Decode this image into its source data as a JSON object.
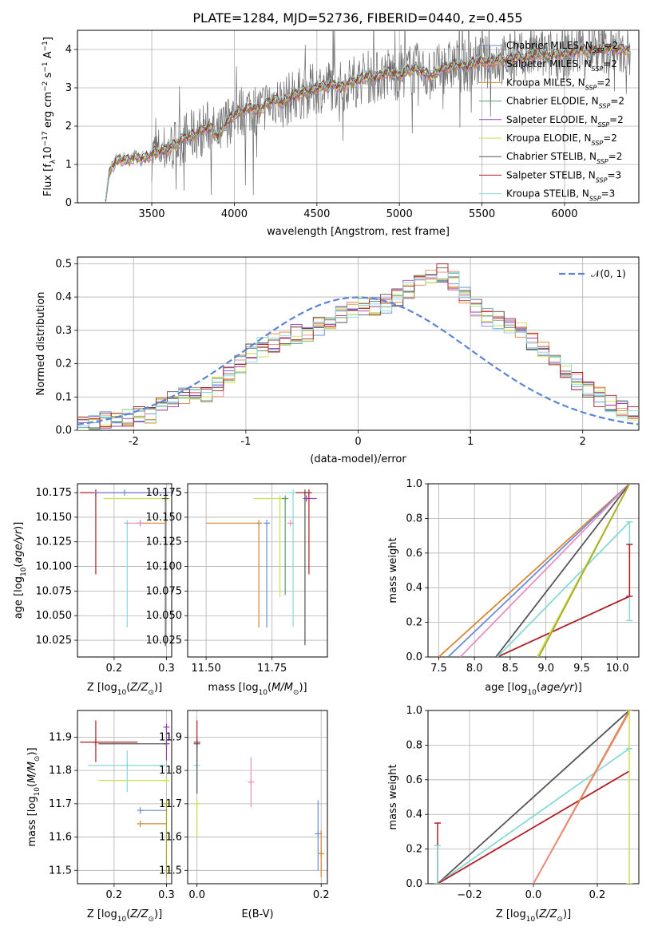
{
  "title": "PLATE=1284, MJD=52736, FIBERID=0440, z=0.455",
  "colors": {
    "Chabrier MILES": "#6a8bd8",
    "Salpeter MILES": "#e88a7a",
    "Kroupa MILES": "#d9862f",
    "Chabrier ELODIE": "#5a9a6a",
    "Salpeter ELODIE": "#9a3fb5",
    "Kroupa ELODIE": "#c7e24f",
    "Chabrier STELIB": "#555555",
    "Salpeter STELIB": "#b01f24",
    "Kroupa STELIB": "#86d9d9",
    "Pink": "#e78fc4",
    "Olive": "#aaaa2a",
    "normal": "#5b84d6"
  },
  "chart_data": [
    {
      "id": "spectrum",
      "type": "line",
      "title": "PLATE=1284, MJD=52736, FIBERID=0440, z=0.455",
      "xlabel": "wavelength [Angstrom, rest frame]",
      "ylabel": "Flux [f_λ 10^-17 erg cm^-2 s^-1 A^-1]",
      "xlim": [
        3050,
        6450
      ],
      "ylim": [
        0,
        4.5
      ],
      "xticks": [
        3500,
        4000,
        4500,
        5000,
        5500,
        6000
      ],
      "yticks": [
        0,
        1,
        2,
        3,
        4
      ],
      "legend_position": "top-right",
      "legend": [
        {
          "main": "Chabrier MILES, N",
          "sub": "SSP",
          "tail": "=2"
        },
        {
          "main": "Salpeter MILES, N",
          "sub": "SSP",
          "tail": "=2"
        },
        {
          "main": "Kroupa MILES, N",
          "sub": "SSP",
          "tail": "=2"
        },
        {
          "main": "Chabrier ELODIE, N",
          "sub": "SSP",
          "tail": "=2"
        },
        {
          "main": "Salpeter ELODIE, N",
          "sub": "SSP",
          "tail": "=2"
        },
        {
          "main": "Kroupa ELODIE, N",
          "sub": "SSP",
          "tail": "=2"
        },
        {
          "main": "Chabrier STELIB, N",
          "sub": "SSP",
          "tail": "=2"
        },
        {
          "main": "Salpeter STELIB, N",
          "sub": "SSP",
          "tail": "=3"
        },
        {
          "main": "Kroupa STELIB, N",
          "sub": "SSP",
          "tail": "=3"
        }
      ],
      "model_curve": {
        "wavelength": [
          3220,
          3240,
          3250,
          3300,
          3350,
          3400,
          3450,
          3500,
          3550,
          3600,
          3650,
          3700,
          3750,
          3800,
          3850,
          3900,
          3950,
          4000,
          4050,
          4100,
          4150,
          4200,
          4250,
          4300,
          4350,
          4400,
          4450,
          4500,
          4550,
          4600,
          4650,
          4700,
          4750,
          4800,
          4850,
          4900,
          4950,
          5000,
          5050,
          5100,
          5150,
          5200,
          5250,
          5300,
          5350,
          5400,
          5450,
          5500,
          5550,
          5600,
          5650,
          5700,
          5750,
          5800,
          5850,
          5900,
          5950,
          6000,
          6050,
          6100,
          6150,
          6200,
          6250,
          6300,
          6350
        ],
        "flux": [
          0.0,
          0.75,
          0.9,
          1.15,
          1.1,
          1.2,
          1.15,
          1.25,
          1.35,
          1.4,
          1.55,
          1.7,
          1.75,
          1.9,
          2.0,
          1.7,
          2.1,
          2.3,
          2.4,
          2.5,
          2.4,
          2.6,
          2.7,
          2.6,
          2.8,
          2.85,
          2.9,
          3.0,
          3.05,
          3.1,
          3.0,
          3.15,
          3.2,
          3.3,
          3.25,
          3.35,
          3.4,
          3.3,
          3.45,
          3.5,
          3.4,
          3.3,
          3.5,
          3.55,
          3.6,
          3.55,
          3.65,
          3.7,
          3.65,
          3.75,
          3.7,
          3.8,
          3.75,
          3.85,
          3.9,
          3.8,
          3.9,
          3.85,
          3.95,
          4.0,
          3.95,
          4.0,
          4.05,
          4.0,
          4.0
        ]
      }
    },
    {
      "id": "residuals",
      "type": "bar",
      "xlabel": "(data-model)/error",
      "ylabel": "Normed distribution",
      "xlim": [
        -2.5,
        2.5
      ],
      "ylim": [
        0,
        0.52
      ],
      "xticks": [
        -2,
        -1,
        0,
        1,
        2
      ],
      "yticks": [
        0.0,
        0.1,
        0.2,
        0.3,
        0.4,
        0.5
      ],
      "legend": [
        {
          "label": "𝒩(0, 1)"
        }
      ],
      "legend_position": "top-right",
      "bin_edges_start": -2.5,
      "bin_width": 0.1,
      "histogram_envelope": [
        0.02,
        0.025,
        0.03,
        0.03,
        0.04,
        0.05,
        0.05,
        0.07,
        0.09,
        0.1,
        0.1,
        0.11,
        0.13,
        0.16,
        0.2,
        0.23,
        0.25,
        0.26,
        0.28,
        0.29,
        0.28,
        0.31,
        0.33,
        0.35,
        0.36,
        0.37,
        0.37,
        0.38,
        0.4,
        0.42,
        0.44,
        0.46,
        0.47,
        0.45,
        0.41,
        0.37,
        0.34,
        0.33,
        0.32,
        0.3,
        0.27,
        0.24,
        0.21,
        0.18,
        0.15,
        0.12,
        0.1,
        0.08,
        0.06,
        0.05
      ]
    },
    {
      "id": "age-vs-Z",
      "type": "scatter",
      "xlabel": "Z [log10(Z/Z⊙)]",
      "ylabel": "age [log10(age/yr)]",
      "xlim": [
        0.13,
        0.31
      ],
      "ylim": [
        10.008,
        10.184
      ],
      "xticks": [
        0.2,
        0.3
      ],
      "xtick_labels": [
        "0.2",
        "0.3"
      ],
      "yticks": [
        10.025,
        10.05,
        10.075,
        10.1,
        10.125,
        10.15,
        10.175
      ],
      "points": [
        {
          "model": "Salpeter STELIB",
          "x": 0.165,
          "y": 10.175,
          "xerr": [
            0.03,
            0.14
          ],
          "yerr": [
            0.083,
            0.0
          ]
        },
        {
          "model": "Kroupa ELODIE",
          "x": 0.3,
          "y": 10.169,
          "xerr": [
            0.12,
            0.0
          ],
          "yerr": [
            0.0,
            0.0
          ]
        },
        {
          "model": "Chabrier STELIB",
          "x": 0.298,
          "y": 10.169,
          "xerr": [
            0.0,
            0.0
          ],
          "yerr": [
            0.15,
            0.0
          ]
        },
        {
          "model": "Kroupa STELIB",
          "x": 0.225,
          "y": 10.144,
          "xerr": [
            0.0,
            0.0
          ],
          "yerr": [
            0.106,
            0.0
          ]
        },
        {
          "model": "Kroupa MILES",
          "x": 0.25,
          "y": 10.144,
          "xerr": [
            0.0,
            0.05
          ],
          "yerr": [
            0.0,
            0.0
          ]
        },
        {
          "model": "Pink",
          "x": 0.25,
          "y": 10.144,
          "xerr": [
            0.03,
            0.0
          ],
          "yerr": [
            0.0,
            0.0
          ]
        },
        {
          "model": "Chabrier MILES",
          "x": 0.22,
          "y": 10.175,
          "xerr": [
            0.06,
            0.09
          ],
          "yerr": [
            0.0,
            0.0
          ]
        }
      ]
    },
    {
      "id": "age-vs-mass",
      "type": "scatter",
      "xlabel": "mass [log10(M/M⊙)]",
      "ylabel": "",
      "xlim": [
        11.43,
        11.96
      ],
      "ylim": [
        10.008,
        10.184
      ],
      "xticks": [
        11.5,
        11.75
      ],
      "xtick_labels": [
        "11.50",
        "11.75"
      ],
      "yticks": [
        10.025,
        10.05,
        10.075,
        10.1,
        10.125,
        10.15,
        10.175
      ],
      "points": [
        {
          "model": "Kroupa MILES",
          "x": 11.7,
          "y": 10.144,
          "xerr": [
            0.2,
            0.0
          ],
          "yerr": [
            0.106,
            0.0
          ]
        },
        {
          "model": "Chabrier MILES",
          "x": 11.73,
          "y": 10.144,
          "xerr": [
            0.0,
            0.0
          ],
          "yerr": [
            0.106,
            0.0
          ]
        },
        {
          "model": "Kroupa ELODIE",
          "x": 11.78,
          "y": 10.169,
          "xerr": [
            0.1,
            0.0
          ],
          "yerr": [
            0.1,
            0.0
          ]
        },
        {
          "model": "Chabrier ELODIE",
          "x": 11.8,
          "y": 10.169,
          "xerr": [
            0.0,
            0.0
          ],
          "yerr": [
            0.098,
            0.0
          ]
        },
        {
          "model": "Kroupa STELIB",
          "x": 11.83,
          "y": 10.175,
          "xerr": [
            0.03,
            0.0
          ],
          "yerr": [
            0.136,
            0.0
          ]
        },
        {
          "model": "Salpeter ELODIE",
          "x": 11.88,
          "y": 10.169,
          "xerr": [
            0.0,
            0.04
          ],
          "yerr": [
            0.0,
            0.0
          ]
        },
        {
          "model": "Chabrier STELIB",
          "x": 11.875,
          "y": 10.175,
          "xerr": [
            0.0,
            0.0
          ],
          "yerr": [
            0.155,
            0.0
          ]
        },
        {
          "model": "Salpeter STELIB",
          "x": 11.89,
          "y": 10.175,
          "xerr": [
            0.05,
            0.0
          ],
          "yerr": [
            0.083,
            0.0
          ]
        },
        {
          "model": "Pink",
          "x": 11.82,
          "y": 10.144,
          "xerr": [
            0.0,
            0.0
          ],
          "yerr": [
            0.0,
            0.0
          ]
        }
      ]
    },
    {
      "id": "massweight-vs-age",
      "type": "line",
      "xlabel": "age [log10(age/yr)]",
      "ylabel": "mass weight",
      "xlim": [
        7.35,
        10.3
      ],
      "ylim": [
        0,
        1
      ],
      "xticks": [
        7.5,
        8.0,
        8.5,
        9.0,
        9.5,
        10.0
      ],
      "xtick_labels": [
        "7.5",
        "8.0",
        "8.5",
        "9.0",
        "9.5",
        "10.0"
      ],
      "yticks": [
        0.0,
        0.2,
        0.4,
        0.6,
        0.8,
        1.0
      ],
      "series": [
        {
          "model": "Kroupa MILES",
          "x": [
            7.5,
            10.17
          ],
          "y": [
            0.0,
            1.0
          ]
        },
        {
          "model": "Chabrier MILES",
          "x": [
            7.63,
            10.17
          ],
          "y": [
            0.0,
            1.0
          ]
        },
        {
          "model": "Pink",
          "x": [
            7.8,
            10.17
          ],
          "y": [
            0.0,
            1.0
          ]
        },
        {
          "model": "Chabrier STELIB",
          "x": [
            8.3,
            10.17
          ],
          "y": [
            0.0,
            1.0
          ]
        },
        {
          "model": "Salpeter STELIB",
          "x": [
            8.32,
            10.17
          ],
          "y": [
            0.0,
            0.35
          ]
        },
        {
          "model": "Kroupa STELIB",
          "x": [
            8.32,
            10.17
          ],
          "y": [
            0.0,
            0.78
          ]
        },
        {
          "model": "Kroupa ELODIE",
          "x": [
            8.88,
            10.17
          ],
          "y": [
            0.0,
            1.0
          ]
        },
        {
          "model": "Olive",
          "x": [
            8.9,
            10.17
          ],
          "y": [
            0.0,
            1.0
          ]
        }
      ],
      "error_bars": [
        {
          "model": "Kroupa STELIB",
          "x": 10.17,
          "y_low": 0.21,
          "y_high": 0.78
        },
        {
          "model": "Salpeter STELIB",
          "x": 10.17,
          "y_low": 0.35,
          "y_high": 0.65
        }
      ]
    },
    {
      "id": "mass-vs-Z",
      "type": "scatter",
      "xlabel": "Z [log10(Z/Z⊙)]",
      "ylabel": "mass [log10(M/M⊙)]",
      "xlim": [
        0.13,
        0.31
      ],
      "ylim": [
        11.46,
        11.98
      ],
      "xticks": [
        0.2,
        0.3
      ],
      "xtick_labels": [
        "0.2",
        "0.3"
      ],
      "yticks": [
        11.5,
        11.6,
        11.7,
        11.8,
        11.9
      ],
      "points": [
        {
          "model": "Salpeter STELIB",
          "x": 0.165,
          "y": 11.885,
          "xerr": [
            0.03,
            0.08
          ],
          "yerr": [
            0.06,
            0.065
          ]
        },
        {
          "model": "Chabrier STELIB",
          "x": 0.3,
          "y": 11.88,
          "xerr": [
            0.13,
            0.0
          ],
          "yerr": [
            0.0,
            0.0
          ]
        },
        {
          "model": "Kroupa STELIB",
          "x": 0.225,
          "y": 11.815,
          "xerr": [
            0.075,
            0.075
          ],
          "yerr": [
            0.08,
            0.045
          ]
        },
        {
          "model": "Kroupa ELODIE",
          "x": 0.3,
          "y": 11.77,
          "xerr": [
            0.13,
            0.0
          ],
          "yerr": [
            0.0,
            0.0
          ]
        },
        {
          "model": "Salpeter ELODIE",
          "x": 0.3,
          "y": 11.93,
          "xerr": [
            0.0,
            0.0
          ],
          "yerr": [
            0.1,
            0.0
          ]
        },
        {
          "model": "Chabrier MILES",
          "x": 0.25,
          "y": 11.68,
          "xerr": [
            0.0,
            0.05
          ],
          "yerr": [
            0.0,
            0.0
          ]
        },
        {
          "model": "Kroupa MILES",
          "x": 0.25,
          "y": 11.64,
          "xerr": [
            0.0,
            0.05
          ],
          "yerr": [
            0.0,
            0.0
          ]
        },
        {
          "model": "Olive",
          "x": 0.3,
          "y": 11.7,
          "xerr": [
            0.0,
            0.0
          ],
          "yerr": [
            0.22,
            0.0
          ]
        }
      ]
    },
    {
      "id": "mass-vs-EBV",
      "type": "scatter",
      "xlabel": "E(B-V)",
      "ylabel": "",
      "xlim": [
        -0.015,
        0.21
      ],
      "ylim": [
        11.46,
        11.98
      ],
      "xticks": [
        0.0,
        0.2
      ],
      "xtick_labels": [
        "0.0",
        "0.2"
      ],
      "yticks": [
        11.5,
        11.6,
        11.7,
        11.8,
        11.9
      ],
      "points": [
        {
          "model": "Salpeter STELIB",
          "x": 0.0,
          "y": 11.885,
          "xerr": [
            0.0,
            0.0
          ],
          "yerr": [
            0.06,
            0.065
          ]
        },
        {
          "model": "Kroupa STELIB",
          "x": 0.0,
          "y": 11.815,
          "xerr": [
            0.0,
            0.0
          ],
          "yerr": [
            0.08,
            0.045
          ]
        },
        {
          "model": "Chabrier STELIB",
          "x": 0.0,
          "y": 11.88,
          "xerr": [
            0.0,
            0.0
          ],
          "yerr": [
            0.15,
            0.0
          ]
        },
        {
          "model": "Kroupa ELODIE",
          "x": 0.0,
          "y": 11.7,
          "xerr": [
            0.0,
            0.0
          ],
          "yerr": [
            0.1,
            0.0
          ]
        },
        {
          "model": "Pink",
          "x": 0.087,
          "y": 11.765,
          "xerr": [
            0.0,
            0.0
          ],
          "yerr": [
            0.075,
            0.075
          ]
        },
        {
          "model": "Chabrier MILES",
          "x": 0.195,
          "y": 11.61,
          "xerr": [
            0.0,
            0.0
          ],
          "yerr": [
            0.11,
            0.1
          ]
        },
        {
          "model": "Kroupa MILES",
          "x": 0.2,
          "y": 11.55,
          "xerr": [
            0.0,
            0.0
          ],
          "yerr": [
            0.07,
            0.07
          ]
        }
      ]
    },
    {
      "id": "massweight-vs-Z",
      "type": "line",
      "xlabel": "Z [log10(Z/Z⊙)]",
      "ylabel": "mass weight",
      "xlim": [
        -0.33,
        0.33
      ],
      "ylim": [
        0,
        1
      ],
      "xticks": [
        -0.2,
        0.0,
        0.2
      ],
      "xtick_labels": [
        "−0.2",
        "0.0",
        "0.2"
      ],
      "yticks": [
        0.0,
        0.2,
        0.4,
        0.6,
        0.8,
        1.0
      ],
      "series": [
        {
          "model": "Chabrier STELIB",
          "x": [
            -0.3,
            0.3
          ],
          "y": [
            0.0,
            1.0
          ]
        },
        {
          "model": "Kroupa STELIB",
          "x": [
            -0.3,
            0.3
          ],
          "y": [
            0.0,
            0.78
          ]
        },
        {
          "model": "Salpeter STELIB",
          "x": [
            -0.3,
            0.3
          ],
          "y": [
            0.0,
            0.65
          ]
        },
        {
          "model": "Kroupa MILES",
          "x": [
            0.0,
            0.3
          ],
          "y": [
            0.0,
            1.0
          ]
        },
        {
          "model": "Salpeter MILES",
          "x": [
            0.0,
            0.3
          ],
          "y": [
            0.0,
            0.99
          ]
        }
      ],
      "error_bars": [
        {
          "model": "Salpeter STELIB",
          "x": -0.3,
          "y_low": 0.0,
          "y_high": 0.35
        },
        {
          "model": "Kroupa STELIB",
          "x": -0.3,
          "y_low": 0.0,
          "y_high": 0.22
        },
        {
          "model": "Kroupa ELODIE",
          "x": 0.3,
          "y_low": 0.0,
          "y_high": 1.0
        },
        {
          "model": "Kroupa STELIB",
          "x": 0.3,
          "y_low": 0.78,
          "y_high": 0.78
        }
      ]
    }
  ]
}
